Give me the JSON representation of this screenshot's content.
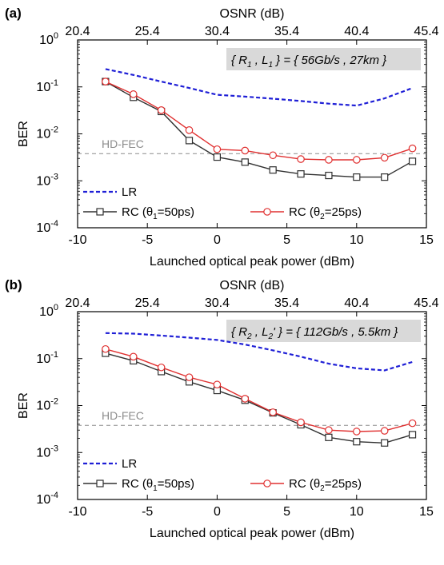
{
  "chart_data": [
    {
      "type": "line",
      "panel_label": "(a)",
      "xlabel": "Launched optical peak power (dBm)",
      "x2label": "OSNR (dB)",
      "ylabel": "BER",
      "xlim": [
        -10,
        15
      ],
      "ylim": [
        0.0001,
        1
      ],
      "yscale": "log",
      "x_ticks": [
        "-10",
        "-5",
        "0",
        "5",
        "10",
        "15"
      ],
      "x2_ticks": [
        "20.4",
        "25.4",
        "30.4",
        "35.4",
        "40.4",
        "45.4"
      ],
      "threshold": {
        "label": "HD-FEC",
        "value": 0.0038
      },
      "annotation": {
        "open": "{",
        "r_base": "R",
        "r_sub": "1",
        "comma": " , ",
        "l_base": "L",
        "l_sub": "1",
        "l_prime": "",
        "close": "} = { 56Gb/s , 27km }"
      },
      "legend_position": "bottom-left",
      "series": [
        {
          "name": "LR",
          "color": "#1f1fd6",
          "style": "dashed",
          "x": [
            -8,
            -6,
            -4,
            -2,
            0,
            2,
            4,
            6,
            8,
            10,
            12,
            14
          ],
          "values": [
            0.24,
            0.18,
            0.13,
            0.095,
            0.068,
            0.062,
            0.056,
            0.05,
            0.044,
            0.04,
            0.057,
            0.095
          ]
        },
        {
          "name_base": "RC (θ",
          "name_sub": "1",
          "name_tail": "=50ps)",
          "color": "#303030",
          "marker": "square",
          "x": [
            -8,
            -6,
            -4,
            -2,
            0,
            2,
            4,
            6,
            8,
            10,
            12,
            14
          ],
          "values": [
            0.13,
            0.06,
            0.03,
            0.0072,
            0.0032,
            0.0025,
            0.0017,
            0.0014,
            0.0013,
            0.0012,
            0.0012,
            0.0026
          ]
        },
        {
          "name_base": "RC (θ",
          "name_sub": "2",
          "name_tail": "=25ps)",
          "color": "#e03030",
          "marker": "circle",
          "x": [
            -8,
            -6,
            -4,
            -2,
            0,
            2,
            4,
            6,
            8,
            10,
            12,
            14
          ],
          "values": [
            0.13,
            0.07,
            0.032,
            0.012,
            0.0047,
            0.0044,
            0.0035,
            0.0029,
            0.0028,
            0.0028,
            0.0031,
            0.0049
          ]
        }
      ]
    },
    {
      "type": "line",
      "panel_label": "(b)",
      "xlabel": "Launched optical peak power (dBm)",
      "x2label": "OSNR (dB)",
      "ylabel": "BER",
      "xlim": [
        -10,
        15
      ],
      "ylim": [
        0.0001,
        1
      ],
      "yscale": "log",
      "x_ticks": [
        "-10",
        "-5",
        "0",
        "5",
        "10",
        "15"
      ],
      "x2_ticks": [
        "20.4",
        "25.4",
        "30.4",
        "35.4",
        "40.4",
        "45.4"
      ],
      "threshold": {
        "label": "HD-FEC",
        "value": 0.0038
      },
      "annotation": {
        "open": "{",
        "r_base": "R",
        "r_sub": "2",
        "comma": " , ",
        "l_base": "L",
        "l_sub": "2",
        "l_prime": "'",
        "close": "} = { 112Gb/s , 5.5km }"
      },
      "legend_position": "bottom-left",
      "series": [
        {
          "name": "LR",
          "color": "#1f1fd6",
          "style": "dashed",
          "x": [
            -8,
            -6,
            -4,
            -2,
            0,
            2,
            4,
            6,
            8,
            10,
            12,
            14
          ],
          "values": [
            0.35,
            0.34,
            0.31,
            0.28,
            0.25,
            0.2,
            0.15,
            0.11,
            0.078,
            0.062,
            0.056,
            0.085
          ]
        },
        {
          "name_base": "RC (θ",
          "name_sub": "1",
          "name_tail": "=50ps)",
          "color": "#303030",
          "marker": "square",
          "x": [
            -8,
            -6,
            -4,
            -2,
            0,
            2,
            4,
            6,
            8,
            10,
            12,
            14
          ],
          "values": [
            0.13,
            0.09,
            0.053,
            0.032,
            0.021,
            0.013,
            0.007,
            0.0039,
            0.0021,
            0.0017,
            0.0016,
            0.0024
          ]
        },
        {
          "name_base": "RC (θ",
          "name_sub": "2",
          "name_tail": "=25ps)",
          "color": "#e03030",
          "marker": "circle",
          "x": [
            -8,
            -6,
            -4,
            -2,
            0,
            2,
            4,
            6,
            8,
            10,
            12,
            14
          ],
          "values": [
            0.16,
            0.11,
            0.065,
            0.04,
            0.028,
            0.014,
            0.0072,
            0.0044,
            0.003,
            0.0028,
            0.0029,
            0.0042
          ]
        }
      ]
    }
  ]
}
